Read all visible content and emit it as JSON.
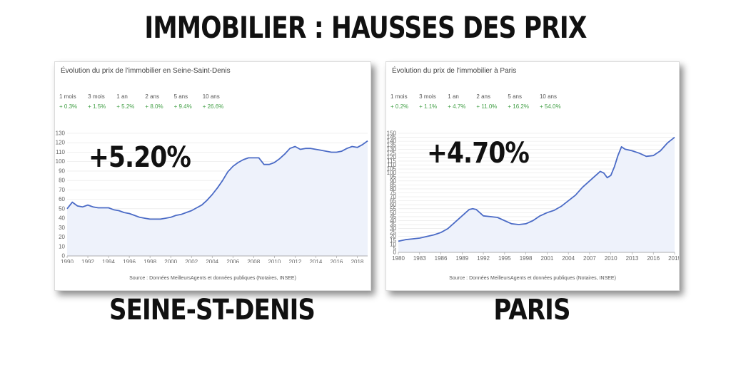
{
  "headline": "IMMOBILIER : HAUSSES DES PRIX",
  "panels": [
    {
      "title": "Évolution du prix de l'immobilier en Seine-Saint-Denis",
      "stats": [
        {
          "label": "1 mois",
          "value": "+ 0.3%"
        },
        {
          "label": "3 mois",
          "value": "+ 1.5%"
        },
        {
          "label": "1 an",
          "value": "+ 5.2%"
        },
        {
          "label": "2 ans",
          "value": "+ 8.0%"
        },
        {
          "label": "5 ans",
          "value": "+ 9.4%"
        },
        {
          "label": "10 ans",
          "value": "+ 26.6%"
        }
      ],
      "source": "Source : Données MeilleursAgents et données publiques (Notaires, INSEE)",
      "big_percent": "+5.20%",
      "caption": "SEINE-ST-DENIS"
    },
    {
      "title": "Évolution du prix de l'immobilier à Paris",
      "stats": [
        {
          "label": "1 mois",
          "value": "+ 0.2%"
        },
        {
          "label": "3 mois",
          "value": "+ 1.1%"
        },
        {
          "label": "1 an",
          "value": "+ 4.7%"
        },
        {
          "label": "2 ans",
          "value": "+ 11.0%"
        },
        {
          "label": "5 ans",
          "value": "+ 16.2%"
        },
        {
          "label": "10 ans",
          "value": "+ 54.0%"
        }
      ],
      "source": "Source : Données MeilleursAgents et données publiques (Notaires, INSEE)",
      "big_percent": "+4.70%",
      "caption": "PARIS"
    }
  ],
  "colors": {
    "line": "#4b6bc6",
    "fill": "#eef2fb",
    "stat_green": "#43a047",
    "grid": "#e6e6e6"
  },
  "chart_data": [
    {
      "type": "area",
      "xlim": [
        1990,
        2019
      ],
      "ylim": [
        0,
        130
      ],
      "yticks": [
        0,
        10,
        20,
        30,
        40,
        50,
        60,
        70,
        80,
        90,
        100,
        110,
        120,
        130
      ],
      "xticks": [
        1990,
        1992,
        1994,
        1996,
        1998,
        2000,
        2002,
        2004,
        2006,
        2008,
        2010,
        2012,
        2014,
        2016,
        2018
      ],
      "x": [
        1990,
        1990.5,
        1991,
        1991.5,
        1992,
        1992.5,
        1993,
        1993.5,
        1994,
        1994.5,
        1995,
        1995.5,
        1996,
        1996.5,
        1997,
        1997.5,
        1998,
        1998.5,
        1999,
        1999.5,
        2000,
        2000.5,
        2001,
        2001.5,
        2002,
        2002.5,
        2003,
        2003.5,
        2004,
        2004.5,
        2005,
        2005.5,
        2006,
        2006.5,
        2007,
        2007.5,
        2008,
        2008.5,
        2009,
        2009.5,
        2010,
        2010.5,
        2011,
        2011.5,
        2012,
        2012.5,
        2013,
        2013.5,
        2014,
        2014.5,
        2015,
        2015.5,
        2016,
        2016.5,
        2017,
        2017.5,
        2018,
        2018.5,
        2019
      ],
      "y": [
        50,
        57,
        53,
        52,
        54,
        52,
        51,
        51,
        51,
        49,
        48,
        46,
        45,
        43,
        41,
        40,
        39,
        39,
        39,
        40,
        41,
        43,
        44,
        46,
        48,
        51,
        54,
        59,
        65,
        72,
        80,
        89,
        95,
        99,
        102,
        104,
        104,
        104,
        97,
        97,
        99,
        103,
        108,
        114,
        116,
        113,
        114,
        114,
        113,
        112,
        111,
        110,
        110,
        111,
        114,
        116,
        115,
        118,
        122
      ]
    },
    {
      "type": "area",
      "xlim": [
        1980,
        2019
      ],
      "ylim": [
        0,
        150
      ],
      "yticks": [
        0,
        5,
        10,
        15,
        20,
        25,
        30,
        35,
        40,
        45,
        50,
        55,
        60,
        65,
        70,
        75,
        80,
        85,
        90,
        95,
        100,
        105,
        110,
        115,
        120,
        125,
        130,
        135,
        140,
        145,
        150
      ],
      "xticks": [
        1980,
        1983,
        1986,
        1989,
        1992,
        1995,
        1998,
        2001,
        2004,
        2007,
        2010,
        2013,
        2016,
        2019
      ],
      "x": [
        1980,
        1981,
        1982,
        1983,
        1984,
        1985,
        1986,
        1987,
        1988,
        1989,
        1990,
        1990.5,
        1991,
        1991.5,
        1992,
        1993,
        1994,
        1995,
        1996,
        1997,
        1998,
        1999,
        2000,
        2001,
        2002,
        2003,
        2004,
        2005,
        2006,
        2007,
        2008,
        2008.5,
        2009,
        2009.5,
        2010,
        2010.5,
        2011,
        2011.5,
        2012,
        2013,
        2014,
        2015,
        2016,
        2017,
        2018,
        2019
      ],
      "y": [
        14,
        16,
        17,
        18,
        20,
        22,
        25,
        30,
        38,
        46,
        54,
        55,
        54,
        50,
        46,
        45,
        44,
        40,
        36,
        35,
        36,
        40,
        46,
        50,
        53,
        58,
        65,
        72,
        82,
        90,
        98,
        102,
        100,
        94,
        97,
        108,
        122,
        133,
        130,
        128,
        125,
        121,
        122,
        128,
        138,
        145
      ]
    }
  ]
}
